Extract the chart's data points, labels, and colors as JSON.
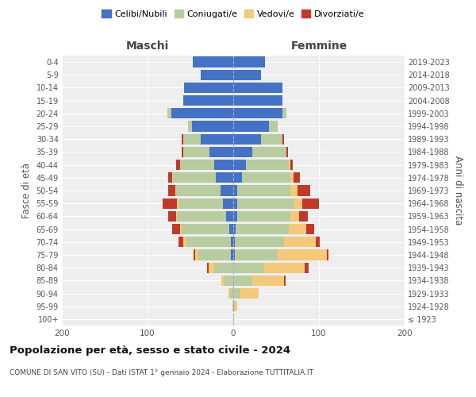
{
  "age_groups": [
    "100+",
    "95-99",
    "90-94",
    "85-89",
    "80-84",
    "75-79",
    "70-74",
    "65-69",
    "60-64",
    "55-59",
    "50-54",
    "45-49",
    "40-44",
    "35-39",
    "30-34",
    "25-29",
    "20-24",
    "15-19",
    "10-14",
    "5-9",
    "0-4"
  ],
  "birth_years": [
    "≤ 1923",
    "1924-1928",
    "1929-1933",
    "1934-1938",
    "1939-1943",
    "1944-1948",
    "1949-1953",
    "1954-1958",
    "1959-1963",
    "1964-1968",
    "1969-1973",
    "1974-1978",
    "1979-1983",
    "1984-1988",
    "1989-1993",
    "1994-1998",
    "1999-2003",
    "2004-2008",
    "2009-2013",
    "2014-2018",
    "2019-2023"
  ],
  "colors": {
    "celibi": "#4472c4",
    "coniugati": "#b8cca0",
    "vedovi": "#f5c97a",
    "divorziati": "#c0392b"
  },
  "males": {
    "celibi": [
      0,
      0,
      0,
      0,
      0,
      3,
      3,
      5,
      8,
      12,
      15,
      20,
      22,
      28,
      38,
      48,
      72,
      58,
      57,
      38,
      47
    ],
    "coniugati": [
      0,
      1,
      4,
      10,
      22,
      38,
      52,
      55,
      58,
      52,
      52,
      50,
      40,
      30,
      20,
      5,
      5,
      0,
      0,
      0,
      0
    ],
    "vedovi": [
      0,
      0,
      2,
      4,
      7,
      3,
      3,
      2,
      1,
      2,
      1,
      1,
      0,
      0,
      0,
      0,
      0,
      0,
      0,
      0,
      0
    ],
    "divorziati": [
      0,
      0,
      0,
      0,
      2,
      2,
      6,
      9,
      9,
      16,
      8,
      5,
      5,
      2,
      2,
      0,
      0,
      0,
      0,
      0,
      0
    ]
  },
  "females": {
    "celibi": [
      0,
      0,
      0,
      0,
      0,
      2,
      2,
      3,
      5,
      5,
      5,
      10,
      15,
      22,
      32,
      42,
      57,
      57,
      57,
      32,
      37
    ],
    "coniugati": [
      0,
      2,
      8,
      22,
      36,
      50,
      57,
      62,
      62,
      66,
      62,
      57,
      50,
      40,
      25,
      10,
      5,
      0,
      0,
      0,
      0
    ],
    "vedovi": [
      1,
      3,
      22,
      37,
      47,
      57,
      37,
      20,
      10,
      10,
      8,
      3,
      2,
      0,
      0,
      0,
      0,
      0,
      0,
      0,
      0
    ],
    "divorziati": [
      0,
      0,
      0,
      2,
      5,
      2,
      5,
      9,
      10,
      19,
      15,
      8,
      2,
      2,
      2,
      0,
      0,
      0,
      0,
      0,
      0
    ]
  },
  "title": "Popolazione per età, sesso e stato civile - 2024",
  "subtitle": "COMUNE DI SAN VITO (SU) - Dati ISTAT 1° gennaio 2024 - Elaborazione TUTTITALIA.IT",
  "xlabel_left": "Maschi",
  "xlabel_right": "Femmine",
  "ylabel_left": "Fasce di età",
  "ylabel_right": "Anni di nascita",
  "xlim": 200,
  "legend_labels": [
    "Celibi/Nubili",
    "Coniugati/e",
    "Vedovi/e",
    "Divorziati/e"
  ],
  "bg_color": "#eeeeee"
}
